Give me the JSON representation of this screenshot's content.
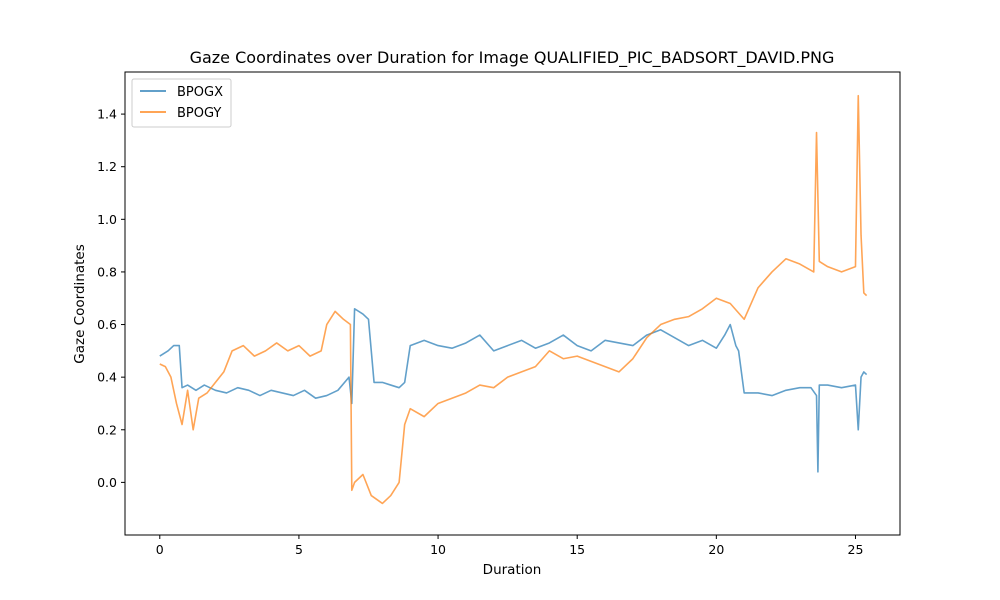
{
  "chart_data": {
    "type": "line",
    "title": "Gaze Coordinates over Duration for Image QUALIFIED_PIC_BADSORT_DAVID.PNG",
    "xlabel": "Duration",
    "ylabel": "Gaze Coordinates",
    "xlim": [
      -1.25,
      26.6
    ],
    "ylim": [
      -0.2,
      1.56
    ],
    "xticks": [
      0,
      5,
      10,
      15,
      20,
      25
    ],
    "yticks": [
      0.0,
      0.2,
      0.4,
      0.6,
      0.8,
      1.0,
      1.2,
      1.4
    ],
    "grid": false,
    "legend_position": "top-left",
    "series": [
      {
        "name": "BPOGX",
        "color": "#1f77b4",
        "x": [
          0.0,
          0.3,
          0.5,
          0.7,
          0.8,
          1.0,
          1.3,
          1.6,
          2.0,
          2.4,
          2.8,
          3.2,
          3.6,
          4.0,
          4.4,
          4.8,
          5.2,
          5.6,
          6.0,
          6.4,
          6.8,
          6.9,
          7.0,
          7.3,
          7.5,
          7.7,
          8.0,
          8.3,
          8.6,
          8.8,
          9.0,
          9.5,
          10.0,
          10.5,
          11.0,
          11.5,
          12.0,
          12.5,
          13.0,
          13.5,
          14.0,
          14.5,
          15.0,
          15.5,
          16.0,
          16.5,
          17.0,
          17.5,
          18.0,
          18.5,
          19.0,
          19.5,
          20.0,
          20.3,
          20.5,
          20.7,
          20.8,
          21.0,
          21.5,
          22.0,
          22.5,
          23.0,
          23.4,
          23.6,
          23.65,
          23.7,
          24.0,
          24.5,
          25.0,
          25.1,
          25.2,
          25.3,
          25.4
        ],
        "y": [
          0.48,
          0.5,
          0.52,
          0.52,
          0.36,
          0.37,
          0.35,
          0.37,
          0.35,
          0.34,
          0.36,
          0.35,
          0.33,
          0.35,
          0.34,
          0.33,
          0.35,
          0.32,
          0.33,
          0.35,
          0.4,
          0.3,
          0.66,
          0.64,
          0.62,
          0.38,
          0.38,
          0.37,
          0.36,
          0.38,
          0.52,
          0.54,
          0.52,
          0.51,
          0.53,
          0.56,
          0.5,
          0.52,
          0.54,
          0.51,
          0.53,
          0.56,
          0.52,
          0.5,
          0.54,
          0.53,
          0.52,
          0.56,
          0.58,
          0.55,
          0.52,
          0.54,
          0.51,
          0.56,
          0.6,
          0.52,
          0.5,
          0.34,
          0.34,
          0.33,
          0.35,
          0.36,
          0.36,
          0.33,
          0.04,
          0.37,
          0.37,
          0.36,
          0.37,
          0.2,
          0.4,
          0.42,
          0.41
        ]
      },
      {
        "name": "BPOGY",
        "color": "#ff7f0e",
        "x": [
          0.0,
          0.2,
          0.4,
          0.6,
          0.8,
          1.0,
          1.2,
          1.4,
          1.7,
          2.0,
          2.3,
          2.6,
          3.0,
          3.4,
          3.8,
          4.2,
          4.6,
          5.0,
          5.4,
          5.8,
          6.0,
          6.3,
          6.6,
          6.85,
          6.9,
          7.0,
          7.3,
          7.6,
          8.0,
          8.3,
          8.6,
          8.8,
          9.0,
          9.5,
          10.0,
          10.5,
          11.0,
          11.5,
          12.0,
          12.5,
          13.0,
          13.5,
          14.0,
          14.5,
          15.0,
          15.5,
          16.0,
          16.5,
          17.0,
          17.5,
          18.0,
          18.5,
          19.0,
          19.5,
          20.0,
          20.5,
          21.0,
          21.5,
          22.0,
          22.5,
          23.0,
          23.5,
          23.6,
          23.7,
          24.0,
          24.5,
          25.0,
          25.1,
          25.2,
          25.3,
          25.4
        ],
        "y": [
          0.45,
          0.44,
          0.4,
          0.3,
          0.22,
          0.35,
          0.2,
          0.32,
          0.34,
          0.38,
          0.42,
          0.5,
          0.52,
          0.48,
          0.5,
          0.53,
          0.5,
          0.52,
          0.48,
          0.5,
          0.6,
          0.65,
          0.62,
          0.6,
          -0.03,
          0.0,
          0.03,
          -0.05,
          -0.08,
          -0.05,
          0.0,
          0.22,
          0.28,
          0.25,
          0.3,
          0.32,
          0.34,
          0.37,
          0.36,
          0.4,
          0.42,
          0.44,
          0.5,
          0.47,
          0.48,
          0.46,
          0.44,
          0.42,
          0.47,
          0.55,
          0.6,
          0.62,
          0.63,
          0.66,
          0.7,
          0.68,
          0.62,
          0.74,
          0.8,
          0.85,
          0.83,
          0.8,
          1.33,
          0.84,
          0.82,
          0.8,
          0.82,
          1.47,
          0.94,
          0.72,
          0.71
        ]
      }
    ]
  }
}
